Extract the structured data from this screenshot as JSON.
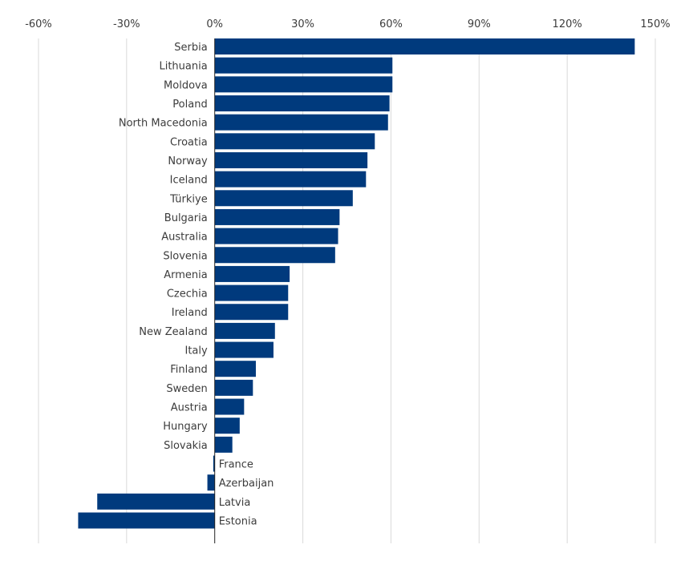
{
  "chart_data": {
    "type": "bar",
    "orientation": "horizontal",
    "categories": [
      "Serbia",
      "Lithuania",
      "Moldova",
      "Poland",
      "North Macedonia",
      "Croatia",
      "Norway",
      "Iceland",
      "Türkiye",
      "Bulgaria",
      "Australia",
      "Slovenia",
      "Armenia",
      "Czechia",
      "Ireland",
      "New Zealand",
      "Italy",
      "Finland",
      "Sweden",
      "Austria",
      "Hungary",
      "Slovakia",
      "France",
      "Azerbaijan",
      "Latvia",
      "Estonia"
    ],
    "values": [
      143,
      60.5,
      60.5,
      59.5,
      59,
      54.5,
      52,
      51.5,
      47,
      42.5,
      42,
      41,
      25.5,
      25,
      25,
      20.5,
      20,
      14,
      13,
      10,
      8.5,
      6,
      -0.5,
      -2.5,
      -40,
      -46.5
    ],
    "xlim": [
      -60,
      150
    ],
    "x_ticks": [
      -60,
      -30,
      0,
      30,
      60,
      90,
      120,
      150
    ],
    "x_tick_labels": [
      "-60%",
      "-30%",
      "0%",
      "30%",
      "60%",
      "90%",
      "120%",
      "150%"
    ],
    "x_axis_position": "top",
    "grid": true,
    "bar_color": "#003a7d",
    "title": "",
    "xlabel": "",
    "ylabel": ""
  }
}
